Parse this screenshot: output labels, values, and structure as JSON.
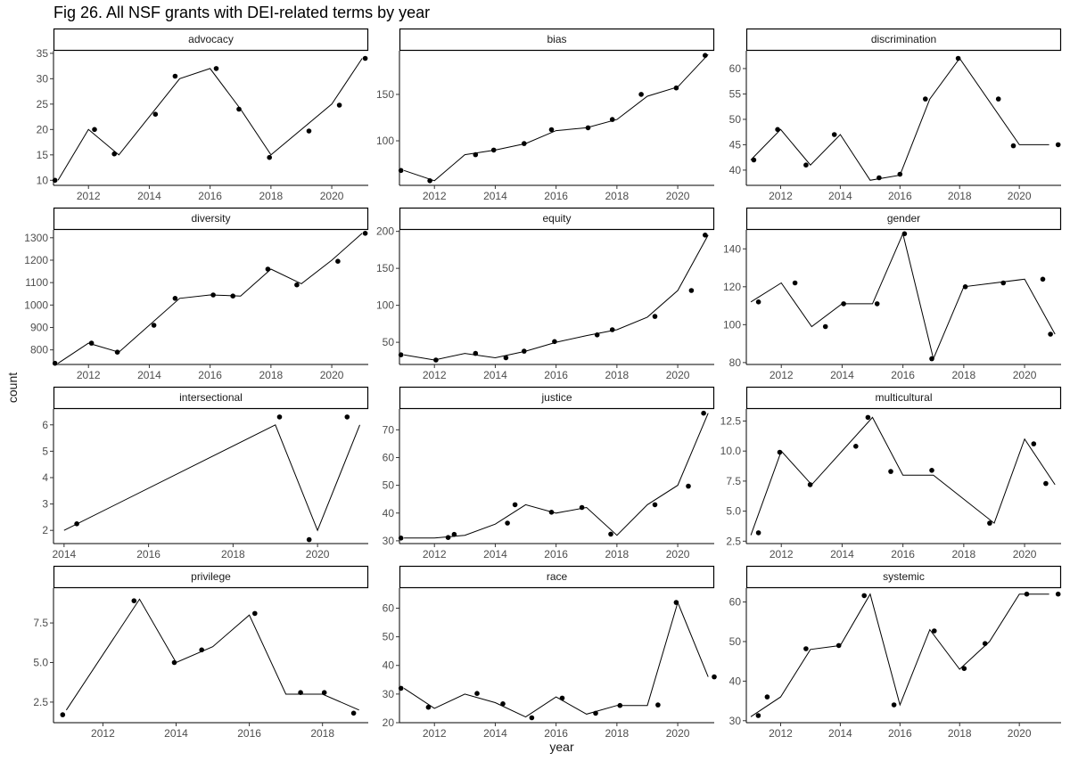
{
  "title": "Fig 26. All NSF grants with DEI-related terms by year",
  "xlabel": "year",
  "ylabel": "count",
  "chart_data": {
    "type": "line",
    "title": "Fig 26. All NSF grants with DEI-related terms by year",
    "xlabel": "year",
    "ylabel": "count",
    "facets": [
      {
        "name": "advocacy",
        "xlim": [
          2010.85,
          2021.2
        ],
        "xticks": [
          2012,
          2014,
          2016,
          2018,
          2020
        ],
        "ylim": [
          9,
          35.5
        ],
        "yticks": [
          10,
          15,
          20,
          25,
          30,
          35
        ],
        "line": [
          [
            2011,
            10
          ],
          [
            2012,
            20
          ],
          [
            2013,
            15
          ],
          [
            2015,
            30
          ],
          [
            2016,
            32
          ],
          [
            2017,
            24
          ],
          [
            2018,
            15
          ],
          [
            2020,
            25
          ],
          [
            2021,
            34
          ]
        ],
        "points": [
          [
            2010.9,
            10
          ],
          [
            2012.2,
            20
          ],
          [
            2012.85,
            15.2
          ],
          [
            2014.2,
            23
          ],
          [
            2014.85,
            30.5
          ],
          [
            2016.2,
            32
          ],
          [
            2016.95,
            24
          ],
          [
            2017.95,
            14.5
          ],
          [
            2019.25,
            19.7
          ],
          [
            2020.25,
            24.8
          ],
          [
            2021.1,
            34
          ]
        ]
      },
      {
        "name": "bias",
        "xlim": [
          2010.85,
          2021.2
        ],
        "xticks": [
          2012,
          2014,
          2016,
          2018,
          2020
        ],
        "ylim": [
          52,
          197
        ],
        "yticks": [
          100,
          150
        ],
        "line": [
          [
            2011,
            68
          ],
          [
            2012,
            57
          ],
          [
            2013,
            85
          ],
          [
            2014,
            90
          ],
          [
            2015,
            97
          ],
          [
            2016,
            111
          ],
          [
            2017,
            114
          ],
          [
            2018,
            123
          ],
          [
            2019,
            148
          ],
          [
            2020,
            158
          ],
          [
            2021,
            193
          ]
        ],
        "points": [
          [
            2010.9,
            68
          ],
          [
            2011.85,
            57
          ],
          [
            2013.35,
            85
          ],
          [
            2013.95,
            90
          ],
          [
            2014.95,
            97
          ],
          [
            2015.85,
            112
          ],
          [
            2017.05,
            114
          ],
          [
            2017.85,
            123
          ],
          [
            2018.8,
            150
          ],
          [
            2019.95,
            157
          ],
          [
            2020.9,
            192
          ]
        ]
      },
      {
        "name": "discrimination",
        "xlim": [
          2010.85,
          2021.4
        ],
        "xticks": [
          2012,
          2014,
          2016,
          2018,
          2020
        ],
        "ylim": [
          37,
          63.5
        ],
        "yticks": [
          40,
          45,
          50,
          55,
          60
        ],
        "line": [
          [
            2011,
            42
          ],
          [
            2012,
            48
          ],
          [
            2013,
            41
          ],
          [
            2014,
            47
          ],
          [
            2015,
            38
          ],
          [
            2016,
            39
          ],
          [
            2017,
            54
          ],
          [
            2018,
            62
          ],
          [
            2020,
            45
          ],
          [
            2021,
            45
          ]
        ],
        "points": [
          [
            2011.1,
            42
          ],
          [
            2011.9,
            48
          ],
          [
            2012.85,
            41
          ],
          [
            2013.8,
            47
          ],
          [
            2015.3,
            38.5
          ],
          [
            2016,
            39.2
          ],
          [
            2016.85,
            54
          ],
          [
            2017.95,
            62
          ],
          [
            2019.3,
            54
          ],
          [
            2019.8,
            44.8
          ],
          [
            2021.3,
            45
          ]
        ]
      },
      {
        "name": "diversity",
        "xlim": [
          2010.85,
          2021.2
        ],
        "xticks": [
          2012,
          2014,
          2016,
          2018,
          2020
        ],
        "ylim": [
          735,
          1335
        ],
        "yticks": [
          800,
          900,
          1000,
          1100,
          1200,
          1300
        ],
        "line": [
          [
            2011,
            740
          ],
          [
            2012,
            830
          ],
          [
            2013,
            790
          ],
          [
            2015,
            1030
          ],
          [
            2016,
            1045
          ],
          [
            2017,
            1040
          ],
          [
            2018,
            1160
          ],
          [
            2019,
            1095
          ],
          [
            2020,
            1200
          ],
          [
            2021,
            1320
          ]
        ],
        "points": [
          [
            2010.9,
            740
          ],
          [
            2012.1,
            830
          ],
          [
            2012.95,
            790
          ],
          [
            2014.15,
            910
          ],
          [
            2014.85,
            1030
          ],
          [
            2016.1,
            1045
          ],
          [
            2016.75,
            1040
          ],
          [
            2017.9,
            1160
          ],
          [
            2018.85,
            1090
          ],
          [
            2020.2,
            1195
          ],
          [
            2021.1,
            1320
          ]
        ]
      },
      {
        "name": "equity",
        "xlim": [
          2010.85,
          2021.2
        ],
        "xticks": [
          2012,
          2014,
          2016,
          2018,
          2020
        ],
        "ylim": [
          20,
          202
        ],
        "yticks": [
          50,
          100,
          150,
          200
        ],
        "line": [
          [
            2011,
            33
          ],
          [
            2012,
            26
          ],
          [
            2013,
            35
          ],
          [
            2014,
            29
          ],
          [
            2015,
            38
          ],
          [
            2016,
            50
          ],
          [
            2017,
            59
          ],
          [
            2018,
            67
          ],
          [
            2019,
            84
          ],
          [
            2020,
            120
          ],
          [
            2021,
            195
          ]
        ],
        "points": [
          [
            2010.9,
            33
          ],
          [
            2012.05,
            26
          ],
          [
            2013.35,
            35
          ],
          [
            2014.35,
            29
          ],
          [
            2014.95,
            38
          ],
          [
            2015.95,
            51
          ],
          [
            2017.35,
            60
          ],
          [
            2017.85,
            67
          ],
          [
            2019.25,
            85
          ],
          [
            2020.45,
            120
          ],
          [
            2020.9,
            195
          ]
        ]
      },
      {
        "name": "gender",
        "xlim": [
          2010.85,
          2021.2
        ],
        "xticks": [
          2012,
          2014,
          2016,
          2018,
          2020
        ],
        "ylim": [
          79,
          150
        ],
        "yticks": [
          80,
          100,
          120,
          140
        ],
        "line": [
          [
            2011,
            112
          ],
          [
            2012,
            122
          ],
          [
            2013,
            99
          ],
          [
            2014,
            111
          ],
          [
            2015,
            111
          ],
          [
            2016,
            148
          ],
          [
            2017,
            82
          ],
          [
            2018,
            120
          ],
          [
            2020,
            124
          ],
          [
            2021,
            95
          ]
        ],
        "points": [
          [
            2011.25,
            112
          ],
          [
            2012.45,
            122
          ],
          [
            2013.45,
            99
          ],
          [
            2014.05,
            111
          ],
          [
            2015.15,
            111
          ],
          [
            2016.05,
            148
          ],
          [
            2016.95,
            82
          ],
          [
            2018.05,
            120
          ],
          [
            2019.3,
            122
          ],
          [
            2020.6,
            124
          ],
          [
            2020.85,
            95
          ]
        ]
      },
      {
        "name": "intersectional",
        "xlim": [
          2013.75,
          2021.2
        ],
        "xticks": [
          2014,
          2016,
          2018,
          2020
        ],
        "ylim": [
          1.5,
          6.6
        ],
        "yticks": [
          2,
          3,
          4,
          5,
          6
        ],
        "line": [
          [
            2014,
            2
          ],
          [
            2019,
            6
          ],
          [
            2020,
            2
          ],
          [
            2021,
            6
          ]
        ],
        "points": [
          [
            2014.3,
            2.25
          ],
          [
            2019.1,
            6.3
          ],
          [
            2019.8,
            1.65
          ],
          [
            2020.7,
            6.3
          ]
        ]
      },
      {
        "name": "justice",
        "xlim": [
          2010.85,
          2021.2
        ],
        "xticks": [
          2012,
          2014,
          2016,
          2018,
          2020
        ],
        "ylim": [
          29,
          77.5
        ],
        "yticks": [
          30,
          40,
          50,
          60,
          70
        ],
        "line": [
          [
            2011,
            31
          ],
          [
            2012,
            31
          ],
          [
            2013,
            32
          ],
          [
            2014,
            36
          ],
          [
            2015,
            43
          ],
          [
            2016,
            40
          ],
          [
            2017,
            42
          ],
          [
            2018,
            32
          ],
          [
            2019,
            43
          ],
          [
            2020,
            50
          ],
          [
            2021,
            76
          ]
        ],
        "points": [
          [
            2010.9,
            31
          ],
          [
            2012.45,
            31.2
          ],
          [
            2012.65,
            32.3
          ],
          [
            2014.4,
            36.4
          ],
          [
            2014.65,
            43
          ],
          [
            2015.85,
            40.3
          ],
          [
            2016.85,
            42
          ],
          [
            2017.8,
            32.4
          ],
          [
            2019.25,
            43
          ],
          [
            2020.35,
            49.7
          ],
          [
            2020.85,
            76
          ]
        ]
      },
      {
        "name": "multicultural",
        "xlim": [
          2010.85,
          2021.2
        ],
        "xticks": [
          2012,
          2014,
          2016,
          2018,
          2020
        ],
        "ylim": [
          2.3,
          13.5
        ],
        "yticks": [
          2.5,
          5.0,
          7.5,
          10.0,
          12.5
        ],
        "line": [
          [
            2011,
            3
          ],
          [
            2012,
            10
          ],
          [
            2013,
            7.2
          ],
          [
            2015,
            12.8
          ],
          [
            2016,
            8
          ],
          [
            2017,
            8
          ],
          [
            2019,
            4
          ],
          [
            2020,
            11
          ],
          [
            2021,
            7.2
          ]
        ],
        "points": [
          [
            2011.25,
            3.2
          ],
          [
            2011.95,
            9.9
          ],
          [
            2012.95,
            7.2
          ],
          [
            2014.45,
            10.4
          ],
          [
            2014.85,
            12.8
          ],
          [
            2015.6,
            8.3
          ],
          [
            2016.95,
            8.4
          ],
          [
            2018.85,
            4
          ],
          [
            2020.3,
            10.6
          ],
          [
            2020.7,
            7.3
          ]
        ]
      },
      {
        "name": "privilege",
        "xlim": [
          2010.65,
          2019.25
        ],
        "xticks": [
          2012,
          2014,
          2016,
          2018
        ],
        "ylim": [
          1.2,
          9.7
        ],
        "yticks": [
          2.5,
          5.0,
          7.5
        ],
        "line": [
          [
            2011,
            2
          ],
          [
            2013,
            9
          ],
          [
            2014,
            5
          ],
          [
            2015,
            6
          ],
          [
            2016,
            8
          ],
          [
            2017,
            3
          ],
          [
            2018,
            3
          ],
          [
            2019,
            2
          ]
        ],
        "points": [
          [
            2010.9,
            1.7
          ],
          [
            2012.85,
            8.9
          ],
          [
            2013.95,
            5
          ],
          [
            2014.7,
            5.8
          ],
          [
            2016.15,
            8.1
          ],
          [
            2017.4,
            3.1
          ],
          [
            2018.05,
            3.1
          ],
          [
            2018.85,
            1.8
          ]
        ]
      },
      {
        "name": "race",
        "xlim": [
          2010.85,
          2021.2
        ],
        "xticks": [
          2012,
          2014,
          2016,
          2018,
          2020
        ],
        "ylim": [
          20,
          67
        ],
        "yticks": [
          20,
          30,
          40,
          50,
          60
        ],
        "line": [
          [
            2011,
            32
          ],
          [
            2012,
            25
          ],
          [
            2013,
            30
          ],
          [
            2014,
            27
          ],
          [
            2015,
            22
          ],
          [
            2016,
            29
          ],
          [
            2017,
            23
          ],
          [
            2018,
            26
          ],
          [
            2019,
            26
          ],
          [
            2020,
            62
          ],
          [
            2021,
            36
          ]
        ],
        "points": [
          [
            2010.9,
            32
          ],
          [
            2011.8,
            25.4
          ],
          [
            2013.4,
            30.2
          ],
          [
            2014.25,
            26.6
          ],
          [
            2015.2,
            21.7
          ],
          [
            2016.2,
            28.6
          ],
          [
            2017.3,
            23.3
          ],
          [
            2018.1,
            26
          ],
          [
            2019.35,
            26.2
          ],
          [
            2019.95,
            62
          ],
          [
            2021.2,
            36
          ]
        ]
      },
      {
        "name": "systemic",
        "xlim": [
          2010.85,
          2021.4
        ],
        "xticks": [
          2012,
          2014,
          2016,
          2018,
          2020
        ],
        "ylim": [
          29.5,
          63.5
        ],
        "yticks": [
          30,
          40,
          50,
          60
        ],
        "line": [
          [
            2011,
            31
          ],
          [
            2012,
            36
          ],
          [
            2013,
            48
          ],
          [
            2014,
            49
          ],
          [
            2015,
            62
          ],
          [
            2016,
            34
          ],
          [
            2017,
            53
          ],
          [
            2018,
            43
          ],
          [
            2019,
            50
          ],
          [
            2020,
            62
          ],
          [
            2021,
            62
          ]
        ],
        "points": [
          [
            2011.25,
            31.3
          ],
          [
            2011.55,
            36
          ],
          [
            2012.85,
            48.2
          ],
          [
            2013.95,
            49
          ],
          [
            2014.8,
            61.6
          ],
          [
            2015.8,
            34
          ],
          [
            2017.15,
            52.7
          ],
          [
            2018.15,
            43.2
          ],
          [
            2018.85,
            49.5
          ],
          [
            2020.25,
            62
          ],
          [
            2021.3,
            62
          ]
        ]
      }
    ]
  }
}
